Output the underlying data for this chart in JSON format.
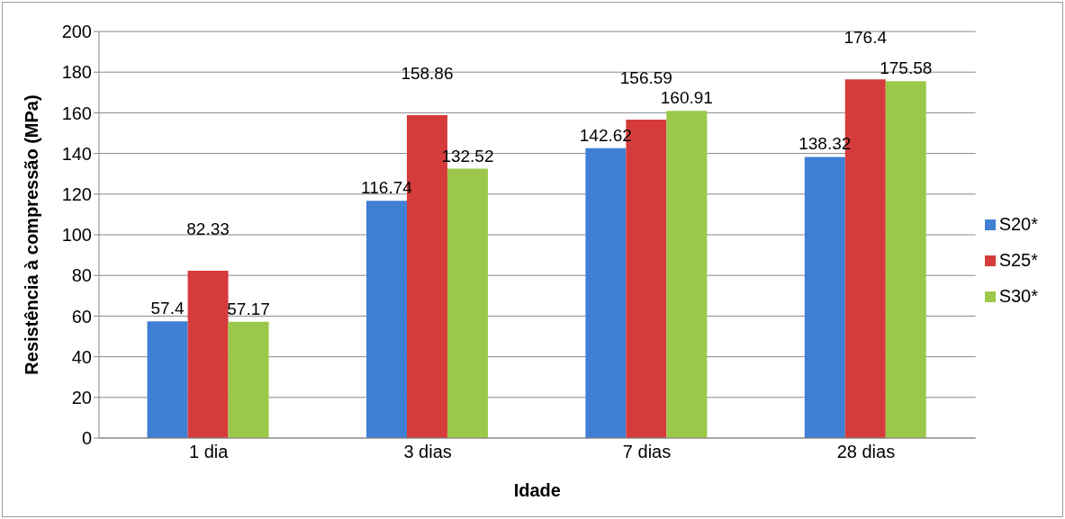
{
  "chart_data": {
    "type": "bar",
    "xlabel": "Idade",
    "ylabel": "Resistência à compressão (MPa)",
    "categories": [
      "1 dia",
      "3 dias",
      "7 dias",
      "28 dias"
    ],
    "series": [
      {
        "name": "S20*",
        "color": "#3f7fd4",
        "values": [
          57.4,
          116.74,
          142.62,
          138.32
        ]
      },
      {
        "name": "S25*",
        "color": "#d63b3b",
        "values": [
          82.33,
          158.86,
          156.59,
          176.4
        ]
      },
      {
        "name": "S30*",
        "color": "#9bc84a",
        "values": [
          57.17,
          132.52,
          160.91,
          175.58
        ]
      }
    ],
    "ylim": [
      0,
      200
    ],
    "yticks": [
      0,
      20,
      40,
      60,
      80,
      100,
      120,
      140,
      160,
      180,
      200
    ],
    "grid": "y",
    "legend": "right",
    "data_labels": true
  }
}
